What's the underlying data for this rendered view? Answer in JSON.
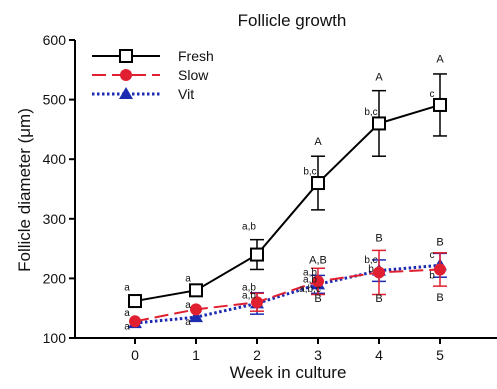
{
  "chart_data": {
    "type": "line",
    "title": "Follicle growth",
    "xlabel": "Week in culture",
    "ylabel": "Follicle diameter (μm)",
    "x": [
      0,
      1,
      2,
      3,
      4,
      5
    ],
    "x_tick_labels": [
      "0",
      "1",
      "2",
      "3",
      "4",
      "5"
    ],
    "ylim": [
      100,
      600
    ],
    "y_ticks": [
      100,
      200,
      300,
      400,
      500,
      600
    ],
    "y_tick_labels": [
      "100",
      "200",
      "300",
      "400",
      "500",
      "600"
    ],
    "legend_position": "top-left",
    "grid": false,
    "series": [
      {
        "name": "Fresh",
        "color": "#000000",
        "marker": "open-square",
        "line_style": "solid",
        "values": [
          162,
          180,
          240,
          360,
          460,
          491
        ],
        "errors": [
          0,
          0,
          25,
          45,
          55,
          52
        ]
      },
      {
        "name": "Slow",
        "color": "#e02030",
        "marker": "filled-circle",
        "line_style": "dashed",
        "values": [
          128,
          148,
          160,
          195,
          210,
          215
        ],
        "errors": [
          0,
          0,
          15,
          22,
          37,
          28
        ]
      },
      {
        "name": "Vit",
        "color": "#1c2bb0",
        "marker": "filled-triangle",
        "line_style": "dotted",
        "values": [
          125,
          135,
          158,
          190,
          213,
          222
        ],
        "errors": [
          0,
          0,
          18,
          15,
          18,
          20
        ]
      }
    ],
    "annotations": [
      {
        "text": "a",
        "x": 0,
        "y": 180,
        "kind": "lower"
      },
      {
        "text": "a",
        "x": 0,
        "y": 137,
        "kind": "lower"
      },
      {
        "text": "a",
        "x": 0,
        "y": 114,
        "kind": "lower"
      },
      {
        "text": "a",
        "x": 1,
        "y": 195,
        "kind": "lower"
      },
      {
        "text": "a",
        "x": 1,
        "y": 150,
        "kind": "lower"
      },
      {
        "text": "a",
        "x": 1,
        "y": 122,
        "kind": "lower"
      },
      {
        "text": "a,b",
        "x": 2,
        "y": 282,
        "kind": "lower"
      },
      {
        "text": "a,b",
        "x": 2,
        "y": 180,
        "kind": "lower"
      },
      {
        "text": "a,b",
        "x": 2,
        "y": 166,
        "kind": "lower"
      },
      {
        "text": "A",
        "x": 3,
        "y": 424,
        "kind": "upper"
      },
      {
        "text": "b,c",
        "x": 3,
        "y": 374,
        "kind": "lower"
      },
      {
        "text": "A,B",
        "x": 3,
        "y": 225,
        "kind": "upper"
      },
      {
        "text": "a,b",
        "x": 3,
        "y": 205,
        "kind": "lower"
      },
      {
        "text": "a,b",
        "x": 3,
        "y": 193,
        "kind": "lower"
      },
      {
        "text": "a,b,c",
        "x": 3,
        "y": 177,
        "kind": "lower"
      },
      {
        "text": "B",
        "x": 3,
        "y": 160,
        "kind": "upper"
      },
      {
        "text": "A",
        "x": 4,
        "y": 532,
        "kind": "upper"
      },
      {
        "text": "b,c",
        "x": 4,
        "y": 474,
        "kind": "lower"
      },
      {
        "text": "B",
        "x": 4,
        "y": 262,
        "kind": "upper"
      },
      {
        "text": "b,c",
        "x": 4,
        "y": 226,
        "kind": "lower"
      },
      {
        "text": "b",
        "x": 4,
        "y": 211,
        "kind": "lower"
      },
      {
        "text": "B",
        "x": 4,
        "y": 160,
        "kind": "upper"
      },
      {
        "text": "A",
        "x": 5,
        "y": 562,
        "kind": "upper"
      },
      {
        "text": "c",
        "x": 5,
        "y": 504,
        "kind": "lower"
      },
      {
        "text": "B",
        "x": 5,
        "y": 255,
        "kind": "upper"
      },
      {
        "text": "c",
        "x": 5,
        "y": 234,
        "kind": "lower"
      },
      {
        "text": "b",
        "x": 5,
        "y": 200,
        "kind": "lower"
      },
      {
        "text": "B",
        "x": 5,
        "y": 162,
        "kind": "upper"
      }
    ]
  }
}
